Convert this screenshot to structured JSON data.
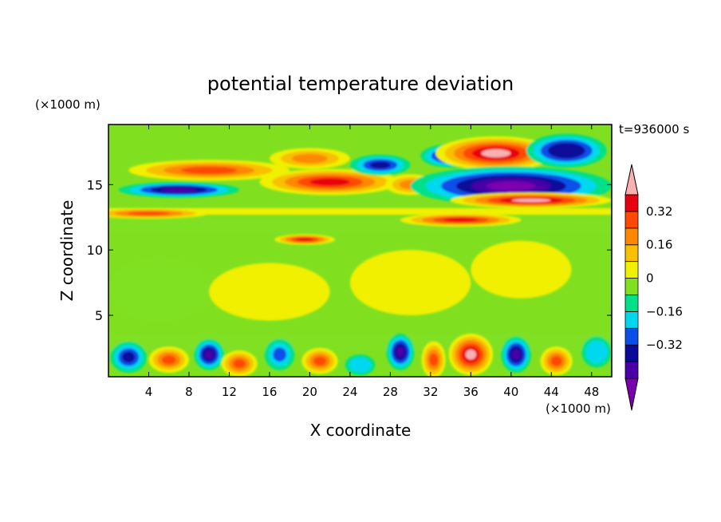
{
  "chart_data": {
    "type": "heatmap",
    "title": "potential temperature deviation",
    "time_label": "t=936000 s",
    "xlabel": "X coordinate",
    "ylabel": "Z coordinate",
    "x_unit_label": "(×1000 m)",
    "y_unit_label": "(×1000 m)",
    "xlim": [
      0,
      50
    ],
    "ylim": [
      0.3,
      19.6
    ],
    "x_ticks": [
      {
        "value": 4,
        "label": "4"
      },
      {
        "value": 8,
        "label": "8"
      },
      {
        "value": 12,
        "label": "12"
      },
      {
        "value": 16,
        "label": "16"
      },
      {
        "value": 20,
        "label": "20"
      },
      {
        "value": 24,
        "label": "24"
      },
      {
        "value": 28,
        "label": "28"
      },
      {
        "value": 32,
        "label": "32"
      },
      {
        "value": 36,
        "label": "36"
      },
      {
        "value": 40,
        "label": "40"
      },
      {
        "value": 44,
        "label": "44"
      },
      {
        "value": 48,
        "label": "48"
      }
    ],
    "y_ticks": [
      {
        "value": 5,
        "label": "5"
      },
      {
        "value": 10,
        "label": "10"
      },
      {
        "value": 15,
        "label": "15"
      }
    ],
    "colorbar": {
      "levels": [
        -0.48,
        -0.4,
        -0.32,
        -0.24,
        -0.16,
        -0.08,
        0,
        0.08,
        0.16,
        0.24,
        0.32,
        0.4,
        0.48
      ],
      "labels": [
        {
          "value": 0.32,
          "label": "0.32"
        },
        {
          "value": 0.16,
          "label": "0.16"
        },
        {
          "value": 0,
          "label": "0"
        },
        {
          "value": -0.16,
          "label": "−0.16"
        },
        {
          "value": -0.32,
          "label": "−0.32"
        }
      ],
      "colors": [
        "#7a00b0",
        "#4a00a8",
        "#0a0a9a",
        "#0a50e8",
        "#00d8f0",
        "#00e088",
        "#80e020",
        "#f0f000",
        "#f8c000",
        "#ff8800",
        "#ff4800",
        "#e80010",
        "#f8b0b0"
      ]
    },
    "regions": [
      {
        "kind": "band",
        "x0": 0,
        "x1": 50,
        "z0": 12.7,
        "z1": 13.2,
        "value": 0.06
      },
      {
        "kind": "band",
        "x0": 0,
        "x1": 50,
        "z0": 11.3,
        "z1": 12.3,
        "value": -0.04
      },
      {
        "kind": "band",
        "x0": 0,
        "x1": 50,
        "z0": 2.3,
        "z1": 3.5,
        "value": -0.04
      },
      {
        "kind": "blob",
        "x": 10,
        "z": 16.1,
        "rx": 8,
        "rz": 0.8,
        "value": 0.3
      },
      {
        "kind": "blob",
        "x": 7,
        "z": 14.6,
        "rx": 6,
        "rz": 0.6,
        "value": -0.42
      },
      {
        "kind": "blob",
        "x": 22,
        "z": 15.2,
        "rx": 7,
        "rz": 1.0,
        "value": 0.42
      },
      {
        "kind": "blob",
        "x": 20,
        "z": 17.0,
        "rx": 4,
        "rz": 0.8,
        "value": 0.22
      },
      {
        "kind": "blob",
        "x": 27,
        "z": 16.5,
        "rx": 3,
        "rz": 0.8,
        "value": -0.34
      },
      {
        "kind": "blob",
        "x": 30,
        "z": 15.0,
        "rx": 2.5,
        "rz": 0.8,
        "value": 0.24
      },
      {
        "kind": "blob",
        "x": 34,
        "z": 17.2,
        "rx": 3,
        "rz": 0.9,
        "value": -0.36
      },
      {
        "kind": "blob",
        "x": 38.5,
        "z": 17.4,
        "rx": 6,
        "rz": 1.3,
        "value": 0.46
      },
      {
        "kind": "blob",
        "x": 40,
        "z": 14.9,
        "rx": 10,
        "rz": 1.5,
        "value": -0.46
      },
      {
        "kind": "blob",
        "x": 45.5,
        "z": 17.6,
        "rx": 4,
        "rz": 1.3,
        "value": -0.36
      },
      {
        "kind": "blob",
        "x": 42,
        "z": 13.8,
        "rx": 8,
        "rz": 0.6,
        "value": 0.46
      },
      {
        "kind": "blob",
        "x": 35,
        "z": 12.3,
        "rx": 6,
        "rz": 0.5,
        "value": 0.38
      },
      {
        "kind": "blob",
        "x": 19.5,
        "z": 10.8,
        "rx": 3,
        "rz": 0.4,
        "value": 0.36
      },
      {
        "kind": "blob",
        "x": 4,
        "z": 12.8,
        "rx": 6,
        "rz": 0.4,
        "value": 0.3
      },
      {
        "kind": "blob",
        "x": 2,
        "z": 1.8,
        "rx": 1.8,
        "rz": 1.2,
        "value": -0.34
      },
      {
        "kind": "blob",
        "x": 6,
        "z": 1.6,
        "rx": 2,
        "rz": 1.0,
        "value": 0.3
      },
      {
        "kind": "blob",
        "x": 10,
        "z": 2.0,
        "rx": 1.5,
        "rz": 1.2,
        "value": -0.38
      },
      {
        "kind": "blob",
        "x": 13,
        "z": 1.3,
        "rx": 1.8,
        "rz": 1.0,
        "value": 0.34
      },
      {
        "kind": "blob",
        "x": 17,
        "z": 2.0,
        "rx": 1.5,
        "rz": 1.2,
        "value": -0.26
      },
      {
        "kind": "blob",
        "x": 21,
        "z": 1.5,
        "rx": 1.8,
        "rz": 1.0,
        "value": 0.3
      },
      {
        "kind": "blob",
        "x": 25,
        "z": 1.2,
        "rx": 1.5,
        "rz": 0.8,
        "value": -0.2
      },
      {
        "kind": "blob",
        "x": 29,
        "z": 2.2,
        "rx": 1.4,
        "rz": 1.4,
        "value": -0.4
      },
      {
        "kind": "blob",
        "x": 32.3,
        "z": 1.6,
        "rx": 1.2,
        "rz": 1.4,
        "value": 0.34
      },
      {
        "kind": "blob",
        "x": 36,
        "z": 2.0,
        "rx": 2.2,
        "rz": 1.6,
        "value": 0.44
      },
      {
        "kind": "blob",
        "x": 40.5,
        "z": 2.0,
        "rx": 1.5,
        "rz": 1.4,
        "value": -0.42
      },
      {
        "kind": "blob",
        "x": 44.5,
        "z": 1.5,
        "rx": 1.6,
        "rz": 1.1,
        "value": 0.3
      },
      {
        "kind": "blob",
        "x": 48.5,
        "z": 2.2,
        "rx": 1.5,
        "rz": 1.2,
        "value": -0.2
      },
      {
        "kind": "blob",
        "x": 30,
        "z": 7.5,
        "rx": 6,
        "rz": 2.5,
        "value": 0.04
      },
      {
        "kind": "blob",
        "x": 16,
        "z": 6.8,
        "rx": 6,
        "rz": 2.2,
        "value": 0.04
      },
      {
        "kind": "blob",
        "x": 41,
        "z": 8.5,
        "rx": 5,
        "rz": 2.2,
        "value": 0.04
      },
      {
        "kind": "blob",
        "x": 5,
        "z": 7.0,
        "rx": 5,
        "rz": 2.5,
        "value": -0.03
      }
    ]
  }
}
